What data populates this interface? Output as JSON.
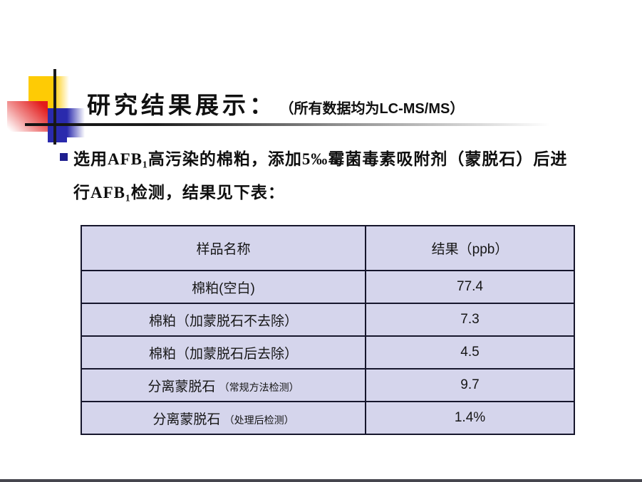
{
  "slide": {
    "title": "研究结果展示：",
    "subtitle_prefix": "（所有数据均为",
    "subtitle_emphasis": "LC-MS/MS",
    "subtitle_suffix": "）",
    "bullet_lines": [
      "选用AFB₁高污染的棉粕，添加5‰霉菌毒素吸附剂（蒙脱石）后进",
      "行AFB₁检测，结果见下表："
    ]
  },
  "table": {
    "columns": [
      "样品名称",
      "结果（ppb）"
    ],
    "rows": [
      {
        "name": "棉粕(空白)",
        "note": "",
        "value": "77.4"
      },
      {
        "name": "棉粕（加蒙脱石不去除）",
        "note": "",
        "value": "7.3"
      },
      {
        "name": "棉粕（加蒙脱石后去除）",
        "note": "",
        "value": "4.5"
      },
      {
        "name": "分离蒙脱石",
        "note": "（常规方法检测）",
        "value": "9.7"
      },
      {
        "name": "分离蒙脱石",
        "note": "（处理后检测）",
        "value": "1.4%"
      }
    ]
  },
  "colors": {
    "cell_background": "#d5d5ec",
    "table_border": "#16162c",
    "accent_yellow": "#fecb05",
    "accent_red": "#e31b1b",
    "accent_blue": "#2a2aad",
    "bullet_marker": "#1f1f8f",
    "bottom_bar": "#46464e"
  }
}
